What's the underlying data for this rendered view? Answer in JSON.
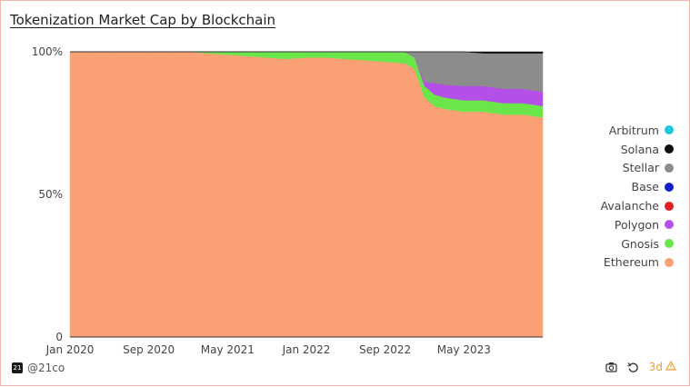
{
  "chart_data": {
    "type": "area",
    "title": "Tokenization Market Cap by Blockchain",
    "stacked": true,
    "normalized": true,
    "x": [
      "2020-01",
      "2020-03",
      "2020-05",
      "2020-07",
      "2020-09",
      "2020-11",
      "2021-01",
      "2021-03",
      "2021-05",
      "2021-07",
      "2021-09",
      "2021-11",
      "2022-01",
      "2022-03",
      "2022-05",
      "2022-07",
      "2022-09",
      "2022-11",
      "2022-12",
      "2023-01",
      "2023-02",
      "2023-03",
      "2023-05",
      "2023-07",
      "2023-09",
      "2023-11",
      "2024-01"
    ],
    "series": [
      {
        "name": "Ethereum",
        "color": "#f9a074",
        "values": [
          100,
          100,
          100,
          100,
          100,
          100,
          100,
          99.5,
          99,
          98.5,
          98,
          97.5,
          98,
          98,
          97.5,
          97,
          96.5,
          96,
          94,
          84,
          81,
          80,
          79,
          79,
          78,
          78,
          77
        ]
      },
      {
        "name": "Gnosis",
        "color": "#6ae64a",
        "values": [
          0,
          0,
          0,
          0,
          0,
          0,
          0,
          0.5,
          1,
          1.5,
          2,
          2.5,
          2,
          2,
          2.5,
          3,
          3.5,
          4,
          4,
          4,
          4,
          4,
          4,
          4,
          4,
          4,
          4
        ]
      },
      {
        "name": "Polygon",
        "color": "#b44fe8",
        "values": [
          0,
          0,
          0,
          0,
          0,
          0,
          0,
          0,
          0,
          0,
          0,
          0,
          0,
          0,
          0,
          0,
          0,
          0,
          0,
          1.5,
          4,
          4.5,
          5,
          5,
          5,
          5,
          5
        ]
      },
      {
        "name": "Avalanche",
        "color": "#e02020",
        "values": [
          0,
          0,
          0,
          0,
          0,
          0,
          0,
          0,
          0,
          0,
          0,
          0,
          0,
          0,
          0,
          0,
          0,
          0,
          0,
          0,
          0,
          0,
          0,
          0,
          0,
          0,
          0
        ]
      },
      {
        "name": "Base",
        "color": "#1420c8",
        "values": [
          0,
          0,
          0,
          0,
          0,
          0,
          0,
          0,
          0,
          0,
          0,
          0,
          0,
          0,
          0,
          0,
          0,
          0,
          0,
          0,
          0,
          0,
          0,
          0,
          0,
          0,
          0
        ]
      },
      {
        "name": "Stellar",
        "color": "#8c8c8c",
        "values": [
          0,
          0,
          0,
          0,
          0,
          0,
          0,
          0,
          0,
          0,
          0,
          0,
          0,
          0,
          0,
          0,
          0,
          0,
          2,
          10.5,
          11,
          11.5,
          12,
          11.5,
          12.5,
          12.5,
          13.5
        ]
      },
      {
        "name": "Solana",
        "color": "#111111",
        "values": [
          0,
          0,
          0,
          0,
          0,
          0,
          0,
          0,
          0,
          0,
          0,
          0,
          0,
          0,
          0,
          0,
          0,
          0,
          0,
          0,
          0,
          0,
          0,
          0.5,
          0.5,
          0.5,
          0.5
        ]
      },
      {
        "name": "Arbitrum",
        "color": "#22c6e0",
        "values": [
          0,
          0,
          0,
          0,
          0,
          0,
          0,
          0,
          0,
          0,
          0,
          0,
          0,
          0,
          0,
          0,
          0,
          0,
          0,
          0,
          0,
          0,
          0,
          0,
          0,
          0,
          0
        ]
      }
    ],
    "xlim": [
      "2020-01",
      "2024-01"
    ],
    "ylim": [
      0,
      100
    ],
    "x_ticks": [
      {
        "label": "Jan 2020",
        "value": "2020-01"
      },
      {
        "label": "Sep 2020",
        "value": "2020-09"
      },
      {
        "label": "May 2021",
        "value": "2021-05"
      },
      {
        "label": "Jan 2022",
        "value": "2022-01"
      },
      {
        "label": "Sep 2022",
        "value": "2022-09"
      },
      {
        "label": "May 2023",
        "value": "2023-05"
      }
    ],
    "y_ticks": [
      {
        "label": "100%",
        "value": 100
      },
      {
        "label": "50%",
        "value": 50
      },
      {
        "label": "0",
        "value": 0
      }
    ],
    "legend_order": [
      "Arbitrum",
      "Solana",
      "Stellar",
      "Base",
      "Avalanche",
      "Polygon",
      "Gnosis",
      "Ethereum"
    ],
    "legend_position": "right",
    "grid": false
  },
  "footer": {
    "logo_text": "21",
    "handle": "@21co",
    "badge_label": "3d",
    "badge_color": "#e8a23a"
  },
  "icons": [
    "camera-icon",
    "refresh-icon",
    "warning-icon"
  ]
}
